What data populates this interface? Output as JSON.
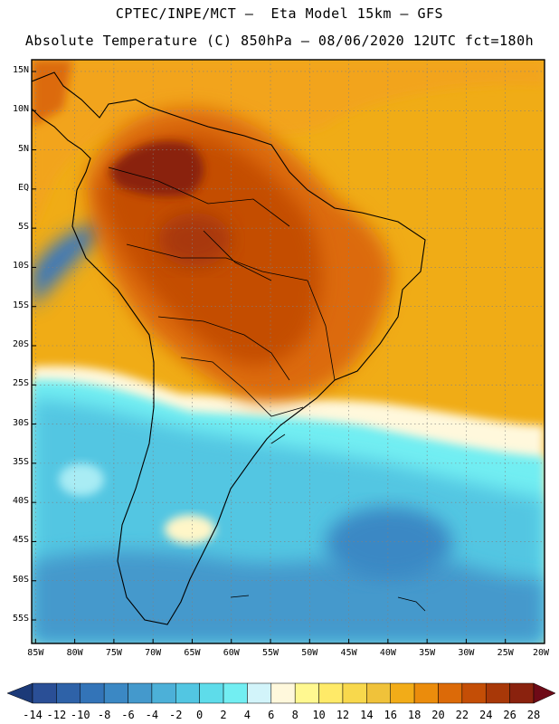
{
  "header": {
    "line1": "CPTEC/INPE/MCT –  Eta Model 15km – GFS",
    "line2": "Absolute Temperature (C) 850hPa – 08/06/2020 12UTC fct=180h"
  },
  "map": {
    "lat_labels": [
      "15N",
      "10N",
      "5N",
      "EQ",
      "5S",
      "10S",
      "15S",
      "20S",
      "25S",
      "30S",
      "35S",
      "40S",
      "45S",
      "50S",
      "55S"
    ],
    "lat_values": [
      15,
      10,
      5,
      0,
      -5,
      -10,
      -15,
      -20,
      -25,
      -30,
      -35,
      -40,
      -45,
      -50,
      -55
    ],
    "lon_labels": [
      "85W",
      "80W",
      "75W",
      "70W",
      "65W",
      "60W",
      "55W",
      "50W",
      "45W",
      "40W",
      "35W",
      "30W",
      "25W",
      "20W"
    ],
    "lon_values": [
      -85,
      -80,
      -75,
      -70,
      -65,
      -60,
      -55,
      -50,
      -45,
      -40,
      -35,
      -30,
      -25,
      -20
    ],
    "extent": {
      "lon_min": -85.5,
      "lon_max": -20,
      "lat_min": -58,
      "lat_max": 16.5
    }
  },
  "colorbar": {
    "labels": [
      "-14",
      "-12",
      "-10",
      "-8",
      "-6",
      "-4",
      "-2",
      "0",
      "2",
      "4",
      "6",
      "8",
      "10",
      "12",
      "14",
      "16",
      "18",
      "20",
      "22",
      "24",
      "26",
      "28"
    ],
    "under_color": "#1c3a78",
    "over_color": "#6e0a17",
    "colors": [
      "#2a4f96",
      "#2e62a8",
      "#3374b8",
      "#3b88c4",
      "#4499cc",
      "#4cb0d8",
      "#52c6e2",
      "#5edcea",
      "#72eef2",
      "#d2f4fa",
      "#fff8dc",
      "#fff890",
      "#ffea68",
      "#f8d84c",
      "#f0c23a",
      "#f2ac18",
      "#eb8c0c",
      "#dc6a08",
      "#c44e06",
      "#a83808",
      "#8a220e"
    ]
  }
}
